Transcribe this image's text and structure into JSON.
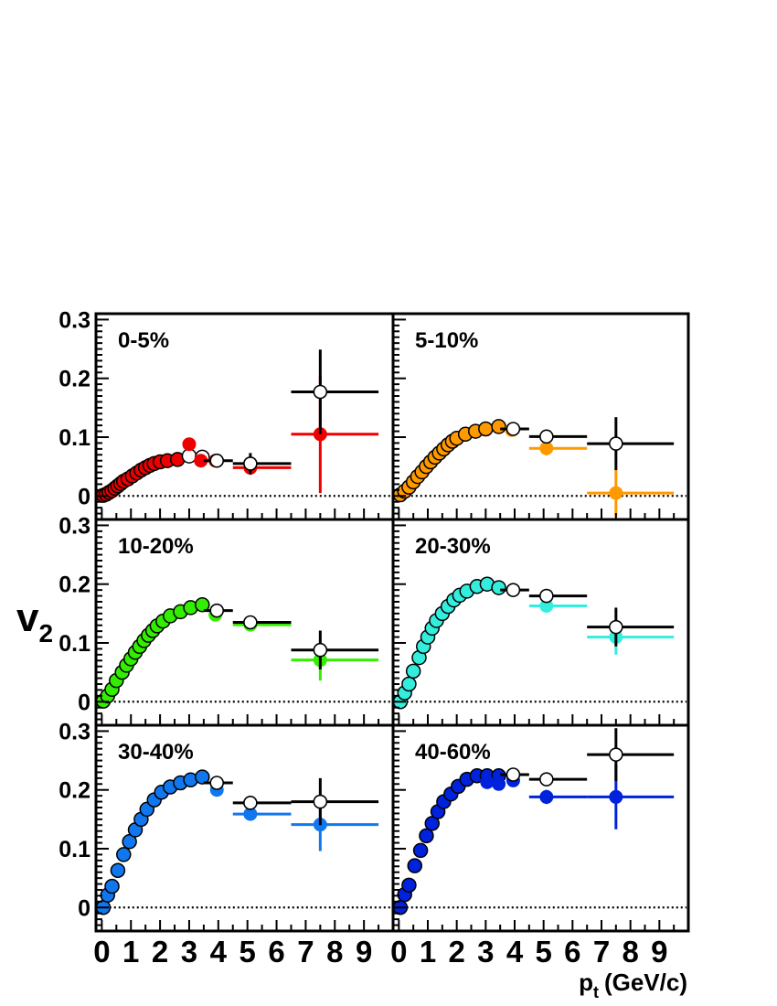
{
  "chart_data": {
    "type": "scatter",
    "ylabel_main": "v",
    "ylabel_sub": "2",
    "xlabel_main": "p",
    "xlabel_sub": "t",
    "xlabel_units": "(GeV/c)",
    "xlim": [
      -0.2,
      10
    ],
    "ylim": [
      -0.04,
      0.31
    ],
    "xticks": [
      "0",
      "1",
      "2",
      "3",
      "4",
      "5",
      "6",
      "7",
      "8",
      "9"
    ],
    "yticks": [
      "0",
      "0.1",
      "0.2",
      "0.3"
    ],
    "zero_line": "dotted",
    "panels": [
      {
        "label": "0-5%",
        "color": "#ee0000",
        "filled": [
          {
            "x": 3.0,
            "y": 0.088
          },
          {
            "x": 3.4,
            "y": 0.06
          },
          {
            "x": 3.9,
            "y": 0.06
          },
          {
            "x": 5.1,
            "y": 0.048,
            "xl": 4.5,
            "xh": 6.5,
            "yerr": 0.012
          },
          {
            "x": 7.5,
            "y": 0.105,
            "xl": 6.5,
            "xh": 9.5,
            "yerr": 0.1
          }
        ],
        "open": [
          {
            "x": 0.05,
            "y": 0.001
          },
          {
            "x": 0.15,
            "y": 0.003
          },
          {
            "x": 0.25,
            "y": 0.006
          },
          {
            "x": 0.35,
            "y": 0.009
          },
          {
            "x": 0.45,
            "y": 0.013
          },
          {
            "x": 0.55,
            "y": 0.017
          },
          {
            "x": 0.65,
            "y": 0.021
          },
          {
            "x": 0.75,
            "y": 0.025
          },
          {
            "x": 0.9,
            "y": 0.029
          },
          {
            "x": 1.05,
            "y": 0.034
          },
          {
            "x": 1.2,
            "y": 0.039
          },
          {
            "x": 1.35,
            "y": 0.044
          },
          {
            "x": 1.5,
            "y": 0.048
          },
          {
            "x": 1.65,
            "y": 0.052
          },
          {
            "x": 1.8,
            "y": 0.055
          },
          {
            "x": 2.0,
            "y": 0.058
          },
          {
            "x": 2.25,
            "y": 0.06
          },
          {
            "x": 2.6,
            "y": 0.062
          },
          {
            "x": 3.0,
            "y": 0.068
          },
          {
            "x": 3.45,
            "y": 0.066
          },
          {
            "x": 3.95,
            "y": 0.06,
            "xl": 3.5,
            "xh": 4.5,
            "yerr": 0.008
          },
          {
            "x": 5.1,
            "y": 0.055,
            "xl": 4.5,
            "xh": 6.5,
            "yerr": 0.018
          },
          {
            "x": 7.5,
            "y": 0.177,
            "xl": 6.5,
            "xh": 9.5,
            "yerr": 0.072
          }
        ]
      },
      {
        "label": "5-10%",
        "color": "#ff9900",
        "filled": [
          {
            "x": 3.9,
            "y": 0.112
          },
          {
            "x": 5.1,
            "y": 0.081,
            "xl": 4.5,
            "xh": 6.5,
            "yerr": 0.012
          },
          {
            "x": 7.5,
            "y": 0.005,
            "xl": 6.5,
            "xh": 9.5,
            "yerr": 0.04
          }
        ],
        "open": [
          {
            "x": 0.05,
            "y": 0.002
          },
          {
            "x": 0.2,
            "y": 0.008
          },
          {
            "x": 0.35,
            "y": 0.015
          },
          {
            "x": 0.5,
            "y": 0.024
          },
          {
            "x": 0.65,
            "y": 0.033
          },
          {
            "x": 0.8,
            "y": 0.041
          },
          {
            "x": 0.95,
            "y": 0.05
          },
          {
            "x": 1.1,
            "y": 0.058
          },
          {
            "x": 1.25,
            "y": 0.066
          },
          {
            "x": 1.4,
            "y": 0.073
          },
          {
            "x": 1.55,
            "y": 0.08
          },
          {
            "x": 1.7,
            "y": 0.087
          },
          {
            "x": 1.85,
            "y": 0.093
          },
          {
            "x": 2.0,
            "y": 0.098
          },
          {
            "x": 2.3,
            "y": 0.105
          },
          {
            "x": 2.65,
            "y": 0.11
          },
          {
            "x": 3.0,
            "y": 0.114
          },
          {
            "x": 3.45,
            "y": 0.118
          },
          {
            "x": 3.95,
            "y": 0.114,
            "xl": 3.5,
            "xh": 4.5,
            "yerr": 0.006
          },
          {
            "x": 5.1,
            "y": 0.101,
            "xl": 4.5,
            "xh": 6.5,
            "yerr": 0.01
          },
          {
            "x": 7.5,
            "y": 0.089,
            "xl": 6.5,
            "xh": 9.5,
            "yerr": 0.045
          }
        ]
      },
      {
        "label": "10-20%",
        "color": "#33ee00",
        "filled": [
          {
            "x": 3.9,
            "y": 0.148
          },
          {
            "x": 5.1,
            "y": 0.131,
            "xl": 4.5,
            "xh": 6.5,
            "yerr": 0.006
          },
          {
            "x": 7.5,
            "y": 0.071,
            "xl": 6.5,
            "xh": 9.5,
            "yerr": 0.035
          }
        ],
        "open": [
          {
            "x": 0.05,
            "y": 0.001
          },
          {
            "x": 0.2,
            "y": 0.01
          },
          {
            "x": 0.35,
            "y": 0.021
          },
          {
            "x": 0.5,
            "y": 0.036
          },
          {
            "x": 0.7,
            "y": 0.05
          },
          {
            "x": 0.85,
            "y": 0.062
          },
          {
            "x": 1.0,
            "y": 0.073
          },
          {
            "x": 1.15,
            "y": 0.084
          },
          {
            "x": 1.3,
            "y": 0.094
          },
          {
            "x": 1.45,
            "y": 0.104
          },
          {
            "x": 1.6,
            "y": 0.113
          },
          {
            "x": 1.75,
            "y": 0.121
          },
          {
            "x": 1.9,
            "y": 0.129
          },
          {
            "x": 2.1,
            "y": 0.137
          },
          {
            "x": 2.35,
            "y": 0.146
          },
          {
            "x": 2.7,
            "y": 0.153
          },
          {
            "x": 3.05,
            "y": 0.16
          },
          {
            "x": 3.45,
            "y": 0.165
          },
          {
            "x": 3.95,
            "y": 0.155,
            "xl": 3.5,
            "xh": 4.5,
            "yerr": 0.005
          },
          {
            "x": 5.1,
            "y": 0.135,
            "xl": 4.5,
            "xh": 6.5,
            "yerr": 0.008
          },
          {
            "x": 7.5,
            "y": 0.088,
            "xl": 6.5,
            "xh": 9.5,
            "yerr": 0.033
          }
        ]
      },
      {
        "label": "20-30%",
        "color": "#33eedd",
        "filled": [
          {
            "x": 5.1,
            "y": 0.163,
            "xl": 4.5,
            "xh": 6.5,
            "yerr": 0.006
          },
          {
            "x": 7.5,
            "y": 0.11,
            "xl": 6.5,
            "xh": 9.5,
            "yerr": 0.03
          }
        ],
        "open": [
          {
            "x": 0.05,
            "y": 0.0
          },
          {
            "x": 0.2,
            "y": 0.015
          },
          {
            "x": 0.35,
            "y": 0.03
          },
          {
            "x": 0.5,
            "y": 0.052
          },
          {
            "x": 0.7,
            "y": 0.075
          },
          {
            "x": 0.85,
            "y": 0.094
          },
          {
            "x": 1.0,
            "y": 0.11
          },
          {
            "x": 1.15,
            "y": 0.125
          },
          {
            "x": 1.3,
            "y": 0.138
          },
          {
            "x": 1.5,
            "y": 0.15
          },
          {
            "x": 1.7,
            "y": 0.162
          },
          {
            "x": 1.9,
            "y": 0.173
          },
          {
            "x": 2.1,
            "y": 0.181
          },
          {
            "x": 2.35,
            "y": 0.188
          },
          {
            "x": 2.7,
            "y": 0.196
          },
          {
            "x": 3.05,
            "y": 0.2
          },
          {
            "x": 3.45,
            "y": 0.194
          },
          {
            "x": 3.95,
            "y": 0.19,
            "xl": 3.5,
            "xh": 4.5,
            "yerr": 0.005
          },
          {
            "x": 5.1,
            "y": 0.18,
            "xl": 4.5,
            "xh": 6.5,
            "yerr": 0.007
          },
          {
            "x": 7.5,
            "y": 0.127,
            "xl": 6.5,
            "xh": 9.5,
            "yerr": 0.033
          }
        ]
      },
      {
        "label": "30-40%",
        "color": "#1177ee",
        "filled": [
          {
            "x": 3.95,
            "y": 0.2
          },
          {
            "x": 5.1,
            "y": 0.159,
            "xl": 4.5,
            "xh": 6.5,
            "yerr": 0.007
          },
          {
            "x": 7.5,
            "y": 0.141,
            "xl": 6.5,
            "xh": 9.5,
            "yerr": 0.045
          }
        ],
        "open": [
          {
            "x": 0.05,
            "y": 0.0
          },
          {
            "x": 0.2,
            "y": 0.021
          },
          {
            "x": 0.35,
            "y": 0.036
          },
          {
            "x": 0.55,
            "y": 0.063
          },
          {
            "x": 0.75,
            "y": 0.09
          },
          {
            "x": 0.95,
            "y": 0.112
          },
          {
            "x": 1.15,
            "y": 0.132
          },
          {
            "x": 1.35,
            "y": 0.15
          },
          {
            "x": 1.55,
            "y": 0.167
          },
          {
            "x": 1.8,
            "y": 0.183
          },
          {
            "x": 2.05,
            "y": 0.196
          },
          {
            "x": 2.35,
            "y": 0.205
          },
          {
            "x": 2.7,
            "y": 0.212
          },
          {
            "x": 3.05,
            "y": 0.217
          },
          {
            "x": 3.45,
            "y": 0.222
          },
          {
            "x": 3.95,
            "y": 0.212,
            "xl": 3.5,
            "xh": 4.5,
            "yerr": 0.006
          },
          {
            "x": 5.1,
            "y": 0.178,
            "xl": 4.5,
            "xh": 6.5,
            "yerr": 0.008
          },
          {
            "x": 7.5,
            "y": 0.18,
            "xl": 6.5,
            "xh": 9.5,
            "yerr": 0.04
          }
        ]
      },
      {
        "label": "40-60%",
        "color": "#0022dd",
        "filled": [
          {
            "x": 3.05,
            "y": 0.213
          },
          {
            "x": 3.45,
            "y": 0.21
          },
          {
            "x": 3.95,
            "y": 0.216
          },
          {
            "x": 5.1,
            "y": 0.188,
            "xl": 4.5,
            "xh": 6.5,
            "yerr": 0.012
          },
          {
            "x": 7.5,
            "y": 0.188,
            "xl": 6.5,
            "xh": 9.5,
            "yerr": 0.055
          }
        ],
        "open": [
          {
            "x": 0.05,
            "y": 0.0
          },
          {
            "x": 0.2,
            "y": 0.022
          },
          {
            "x": 0.35,
            "y": 0.038
          },
          {
            "x": 0.55,
            "y": 0.071
          },
          {
            "x": 0.75,
            "y": 0.097
          },
          {
            "x": 0.95,
            "y": 0.122
          },
          {
            "x": 1.15,
            "y": 0.143
          },
          {
            "x": 1.35,
            "y": 0.163
          },
          {
            "x": 1.55,
            "y": 0.18
          },
          {
            "x": 1.8,
            "y": 0.193
          },
          {
            "x": 2.05,
            "y": 0.206
          },
          {
            "x": 2.35,
            "y": 0.218
          },
          {
            "x": 2.7,
            "y": 0.224
          },
          {
            "x": 3.05,
            "y": 0.224
          },
          {
            "x": 3.45,
            "y": 0.224
          },
          {
            "x": 3.95,
            "y": 0.226,
            "xl": 3.5,
            "xh": 4.5,
            "yerr": 0.007
          },
          {
            "x": 5.1,
            "y": 0.218,
            "xl": 4.5,
            "xh": 6.5,
            "yerr": 0.01
          },
          {
            "x": 7.5,
            "y": 0.26,
            "xl": 6.5,
            "xh": 9.5,
            "yerr": 0.045
          }
        ]
      }
    ]
  }
}
